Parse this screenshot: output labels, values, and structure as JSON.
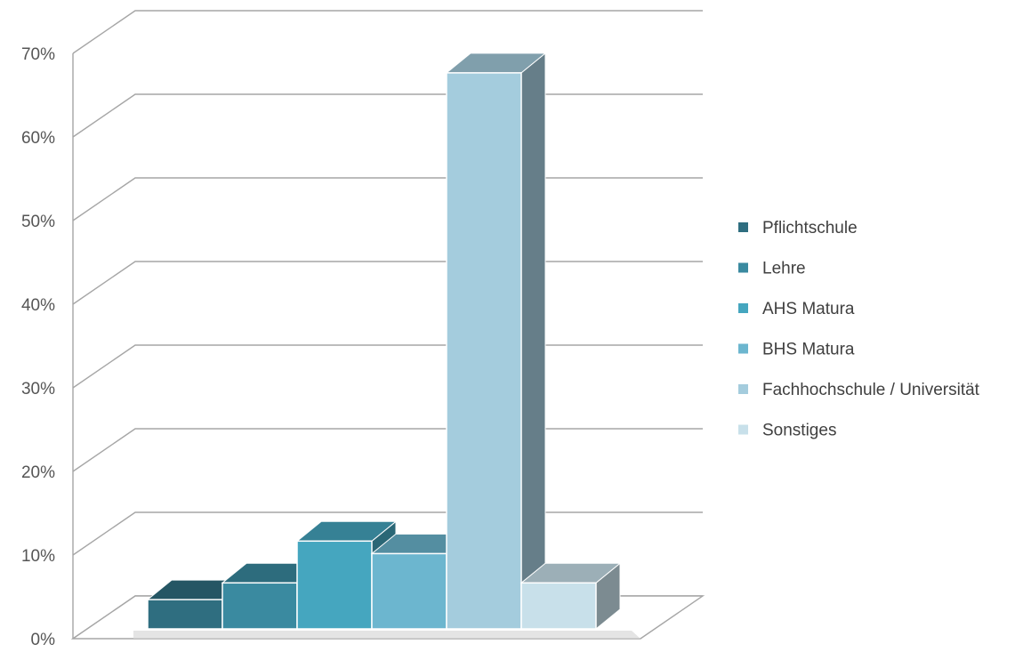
{
  "chart_data": {
    "type": "bar",
    "title": "",
    "xlabel": "",
    "ylabel": "",
    "ylim": [
      0,
      70
    ],
    "y_ticks": [
      "0%",
      "10%",
      "20%",
      "30%",
      "40%",
      "50%",
      "60%",
      "70%"
    ],
    "grid": true,
    "three_d": true,
    "legend_position": "right",
    "series": [
      {
        "name": "Pflichtschule",
        "value": 3.5,
        "color": "#2f6e80"
      },
      {
        "name": "Lehre",
        "value": 5.5,
        "color": "#3a8aa0"
      },
      {
        "name": "AHS Matura",
        "value": 10.5,
        "color": "#45a6bf"
      },
      {
        "name": "BHS Matura",
        "value": 9,
        "color": "#6cb6cf"
      },
      {
        "name": "Fachhochschule / Universität",
        "value": 66.5,
        "color": "#a4ccdd"
      },
      {
        "name": "Sonstiges",
        "value": 5.5,
        "color": "#c8e0ea"
      }
    ]
  }
}
